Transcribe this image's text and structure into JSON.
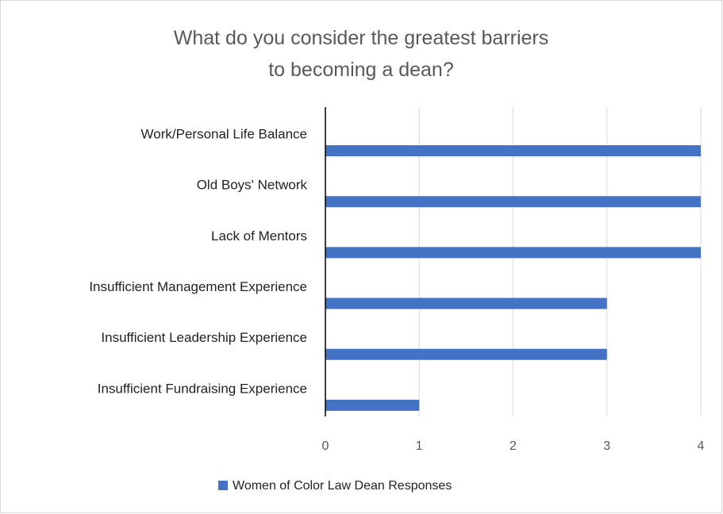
{
  "chart_data": {
    "type": "bar",
    "orientation": "horizontal",
    "title": "What do you consider the greatest barriers to becoming a dean?",
    "categories": [
      "Work/Personal Life Balance",
      "Old Boys' Network",
      "Lack of Mentors",
      "Insufficient Management Experience",
      "Insufficient Leadership Experience",
      "Insufficient Fundraising Experience"
    ],
    "series": [
      {
        "name": "Women of Color Law Dean Responses",
        "color": "#4472c4",
        "values": [
          4,
          4,
          4,
          3,
          3,
          1
        ]
      }
    ],
    "xlim": [
      0,
      4
    ],
    "xticks": [
      0,
      1,
      2,
      3,
      4
    ],
    "grid": true,
    "legend": "bottom"
  }
}
